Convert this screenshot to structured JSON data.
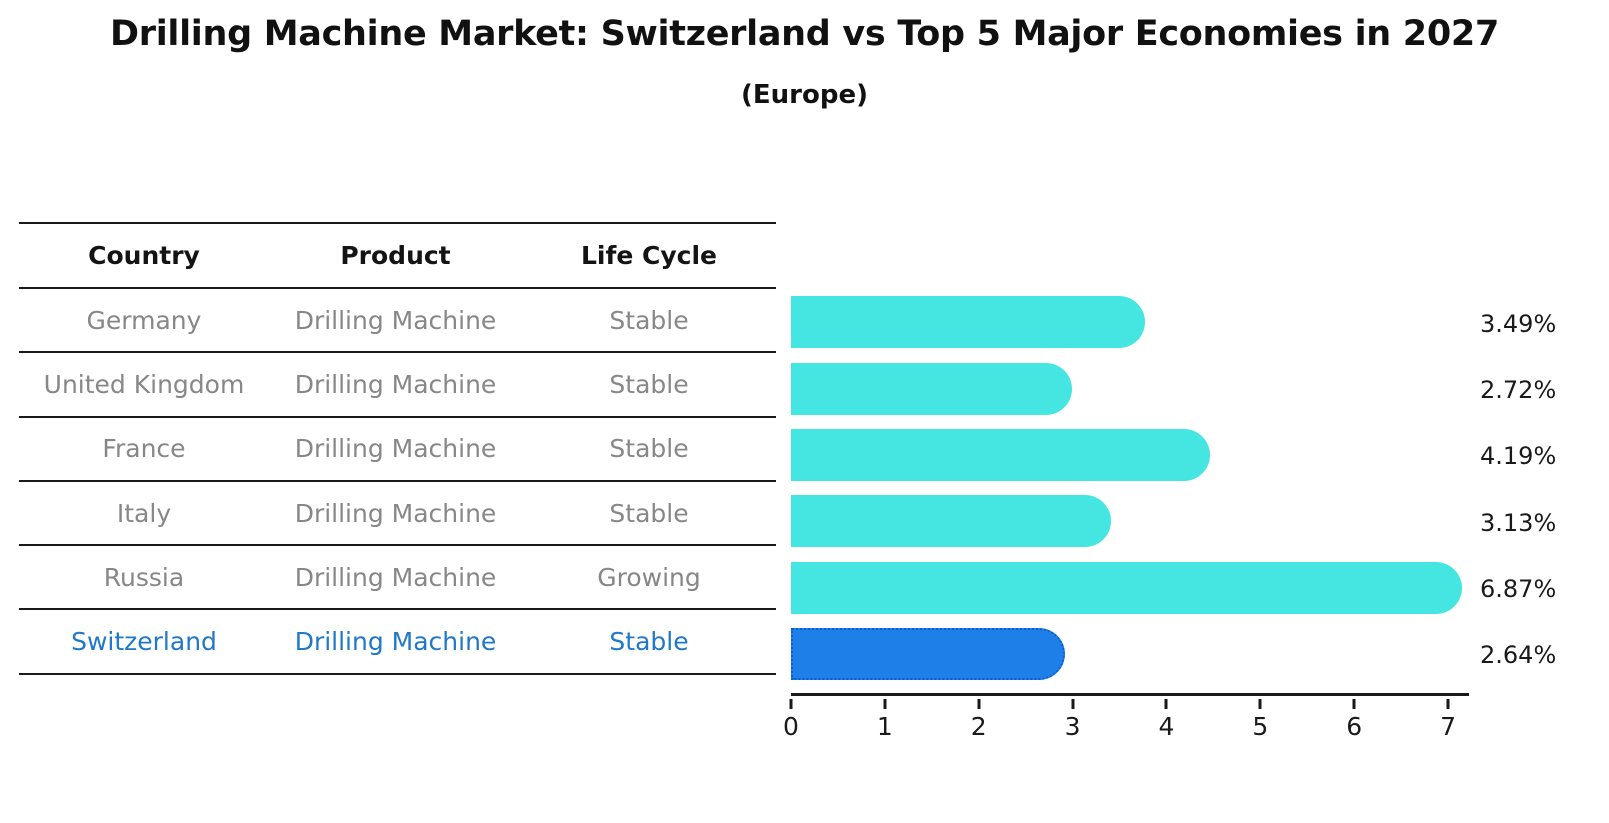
{
  "title": "Drilling Machine Market: Switzerland vs Top 5 Major Economies in 2027",
  "subtitle": "(Europe)",
  "table": {
    "columns": [
      "Country",
      "Product",
      "Life Cycle"
    ],
    "rows": [
      {
        "country": "Germany",
        "product": "Drilling Machine",
        "life_cycle": "Stable",
        "highlighted": false
      },
      {
        "country": "United Kingdom",
        "product": "Drilling Machine",
        "life_cycle": "Stable",
        "highlighted": false
      },
      {
        "country": "France",
        "product": "Drilling Machine",
        "life_cycle": "Stable",
        "highlighted": false
      },
      {
        "country": "Italy",
        "product": "Drilling Machine",
        "life_cycle": "Stable",
        "highlighted": false
      },
      {
        "country": "Russia",
        "product": "Drilling Machine",
        "life_cycle": "Growing",
        "highlighted": false
      },
      {
        "country": "Switzerland",
        "product": "Drilling Machine",
        "life_cycle": "Stable",
        "highlighted": true
      }
    ]
  },
  "chart_data": {
    "type": "bar",
    "orientation": "horizontal",
    "title": "Drilling Machine Market: Switzerland vs Top 5 Major Economies in 2027",
    "subtitle": "(Europe)",
    "categories": [
      "Germany",
      "United Kingdom",
      "France",
      "Italy",
      "Russia",
      "Switzerland"
    ],
    "values": [
      3.49,
      2.72,
      4.19,
      3.13,
      6.87,
      2.64
    ],
    "value_labels": [
      "3.49%",
      "2.72%",
      "4.19%",
      "3.13%",
      "6.87%",
      "2.64%"
    ],
    "x_ticks": [
      "0",
      "1",
      "2",
      "3",
      "4",
      "5",
      "6",
      "7"
    ],
    "xlim": [
      0,
      7.2
    ],
    "xlabel": "",
    "ylabel": "",
    "grid": false,
    "legend": false,
    "highlight_index": 5
  },
  "colors": {
    "bar": "#45E6E2",
    "highlight_bar": "#1E7FE8",
    "highlight_border": "#0D5FD0",
    "table_text": "#878787",
    "highlight_text": "#1F78C8",
    "header_text": "#141414",
    "line": "#1A1A1A",
    "value_label": "#1A1A1A"
  }
}
